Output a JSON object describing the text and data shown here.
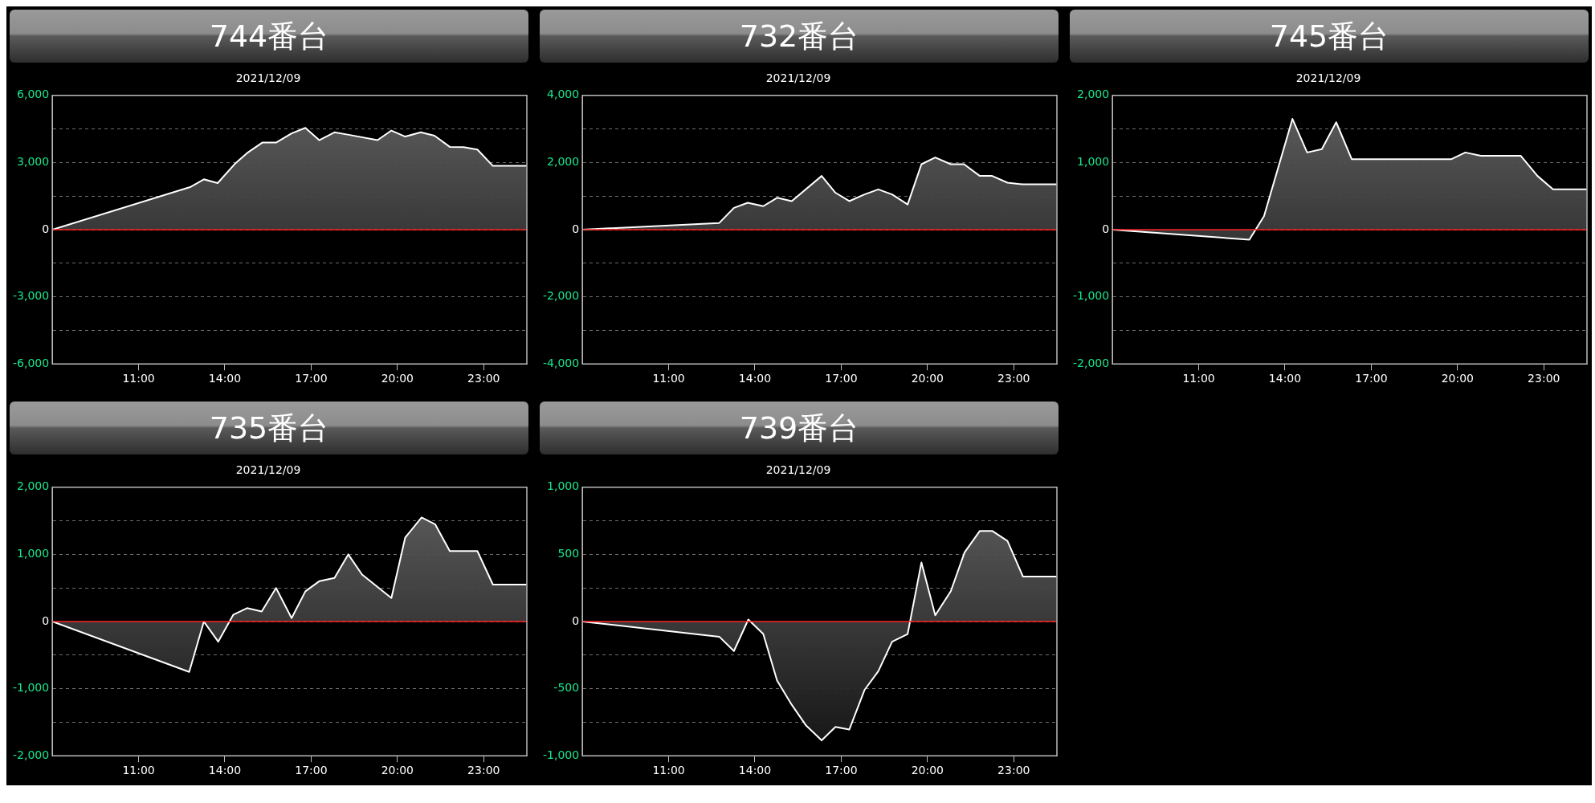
{
  "chart_data": [
    {
      "type": "area",
      "title": "744番台",
      "subtitle": "2021/12/09",
      "x": [
        8,
        12.79,
        13.27,
        13.75,
        14.34,
        14.77,
        15.3,
        15.78,
        16.32,
        16.8,
        17.28,
        17.81,
        18.35,
        19.31,
        19.79,
        20.27,
        20.81,
        21.29,
        21.82,
        22.3,
        22.78,
        23.32,
        24.49
      ],
      "series": [
        {
          "color": "#ffffff",
          "values": [
            0,
            1900,
            2250,
            2080,
            2930,
            3420,
            3890,
            3890,
            4300,
            4550,
            4000,
            4350,
            4230,
            4000,
            4430,
            4160,
            4350,
            4200,
            3700,
            3690,
            3580,
            2850,
            2850
          ]
        }
      ],
      "xlim": [
        8,
        24.5
      ],
      "xticks": [
        {
          "value": 11,
          "label": "11:00"
        },
        {
          "value": 14,
          "label": "14:00"
        },
        {
          "value": 17,
          "label": "17:00"
        },
        {
          "value": 20,
          "label": "20:00"
        },
        {
          "value": 23,
          "label": "23:00"
        }
      ],
      "ylim": [
        -6000,
        6000
      ],
      "yticks": [
        {
          "value": -6000,
          "label": "-6,000"
        },
        {
          "value": -4500,
          "label": null
        },
        {
          "value": -3000,
          "label": "-3,000"
        },
        {
          "value": -1500,
          "label": null
        },
        {
          "value": 0,
          "label": "0"
        },
        {
          "value": 1500,
          "label": null
        },
        {
          "value": 3000,
          "label": "3,000"
        },
        {
          "value": 4500,
          "label": null
        },
        {
          "value": 6000,
          "label": "6,000"
        }
      ],
      "ref_lines": [
        {
          "axis": "y",
          "value": 0,
          "color": "#ff2020"
        }
      ],
      "grid": "y",
      "legend": false
    },
    {
      "type": "area",
      "title": "732番台",
      "subtitle": "2021/12/09",
      "x": [
        8,
        12.76,
        13.27,
        13.75,
        14.29,
        14.77,
        15.28,
        16.32,
        16.8,
        17.28,
        17.81,
        18.29,
        18.77,
        19.31,
        19.79,
        20.27,
        20.81,
        21.27,
        21.82,
        22.25,
        22.78,
        23.32,
        24.49
      ],
      "series": [
        {
          "color": "#ffffff",
          "values": [
            0,
            200,
            650,
            800,
            700,
            950,
            850,
            1600,
            1100,
            850,
            1050,
            1200,
            1050,
            750,
            1950,
            2150,
            1950,
            1950,
            1600,
            1600,
            1400,
            1350,
            1350
          ]
        }
      ],
      "xlim": [
        8,
        24.5
      ],
      "xticks": [
        {
          "value": 11,
          "label": "11:00"
        },
        {
          "value": 14,
          "label": "14:00"
        },
        {
          "value": 17,
          "label": "17:00"
        },
        {
          "value": 20,
          "label": "20:00"
        },
        {
          "value": 23,
          "label": "23:00"
        }
      ],
      "ylim": [
        -4000,
        4000
      ],
      "yticks": [
        {
          "value": -4000,
          "label": "-4,000"
        },
        {
          "value": -3000,
          "label": null
        },
        {
          "value": -2000,
          "label": "-2,000"
        },
        {
          "value": -1000,
          "label": null
        },
        {
          "value": 0,
          "label": "0"
        },
        {
          "value": 1000,
          "label": null
        },
        {
          "value": 2000,
          "label": "2,000"
        },
        {
          "value": 3000,
          "label": null
        },
        {
          "value": 4000,
          "label": "4,000"
        }
      ],
      "ref_lines": [
        {
          "axis": "y",
          "value": 0,
          "color": "#ff2020"
        }
      ],
      "grid": "y",
      "legend": false
    },
    {
      "type": "area",
      "title": "745番台",
      "subtitle": "2021/12/09",
      "x": [
        8,
        12.76,
        13.27,
        14.26,
        14.77,
        15.28,
        15.78,
        16.32,
        19.79,
        20.27,
        20.81,
        22.2,
        22.78,
        23.32,
        24.49
      ],
      "series": [
        {
          "color": "#ffffff",
          "values": [
            0,
            -150,
            200,
            1650,
            1150,
            1200,
            1600,
            1050,
            1050,
            1150,
            1100,
            1100,
            800,
            600,
            600
          ]
        }
      ],
      "xlim": [
        8,
        24.5
      ],
      "xticks": [
        {
          "value": 11,
          "label": "11:00"
        },
        {
          "value": 14,
          "label": "14:00"
        },
        {
          "value": 17,
          "label": "17:00"
        },
        {
          "value": 20,
          "label": "20:00"
        },
        {
          "value": 23,
          "label": "23:00"
        }
      ],
      "ylim": [
        -2000,
        2000
      ],
      "yticks": [
        {
          "value": -2000,
          "label": "-2,000"
        },
        {
          "value": -1500,
          "label": null
        },
        {
          "value": -1000,
          "label": "-1,000"
        },
        {
          "value": -500,
          "label": null
        },
        {
          "value": 0,
          "label": "0"
        },
        {
          "value": 500,
          "label": null
        },
        {
          "value": 1000,
          "label": "1,000"
        },
        {
          "value": 1500,
          "label": null
        },
        {
          "value": 2000,
          "label": "2,000"
        }
      ],
      "ref_lines": [
        {
          "axis": "y",
          "value": 0,
          "color": "#ff2020"
        }
      ],
      "grid": "y",
      "legend": false
    },
    {
      "type": "area",
      "title": "735番台",
      "subtitle": "2021/12/09",
      "x": [
        8,
        12.76,
        13.27,
        13.77,
        14.29,
        14.77,
        15.28,
        15.78,
        16.32,
        16.8,
        17.28,
        17.81,
        18.29,
        18.77,
        19.79,
        20.27,
        20.84,
        21.31,
        21.82,
        22.78,
        23.32,
        24.49
      ],
      "series": [
        {
          "color": "#ffffff",
          "values": [
            0,
            -750,
            0,
            -300,
            100,
            200,
            150,
            500,
            50,
            450,
            600,
            650,
            1000,
            700,
            350,
            1250,
            1550,
            1450,
            1050,
            1050,
            550,
            550
          ]
        }
      ],
      "xlim": [
        8,
        24.5
      ],
      "xticks": [
        {
          "value": 11,
          "label": "11:00"
        },
        {
          "value": 14,
          "label": "14:00"
        },
        {
          "value": 17,
          "label": "17:00"
        },
        {
          "value": 20,
          "label": "20:00"
        },
        {
          "value": 23,
          "label": "23:00"
        }
      ],
      "ylim": [
        -2000,
        2000
      ],
      "yticks": [
        {
          "value": -2000,
          "label": "-2,000"
        },
        {
          "value": -1500,
          "label": null
        },
        {
          "value": -1000,
          "label": "-1,000"
        },
        {
          "value": -500,
          "label": null
        },
        {
          "value": 0,
          "label": "0"
        },
        {
          "value": 500,
          "label": null
        },
        {
          "value": 1000,
          "label": "1,000"
        },
        {
          "value": 1500,
          "label": null
        },
        {
          "value": 2000,
          "label": "2,000"
        }
      ],
      "ref_lines": [
        {
          "axis": "y",
          "value": 0,
          "color": "#ff2020"
        }
      ],
      "grid": "y",
      "legend": false
    },
    {
      "type": "area",
      "title": "739番台",
      "subtitle": "2021/12/09",
      "x": [
        8,
        12.76,
        13.27,
        13.77,
        14.29,
        14.77,
        15.28,
        15.78,
        16.32,
        16.8,
        17.28,
        17.81,
        18.29,
        18.77,
        19.31,
        19.79,
        20.27,
        20.81,
        21.29,
        21.82,
        22.25,
        22.78,
        23.32,
        24.49
      ],
      "series": [
        {
          "color": "#ffffff",
          "values": [
            0,
            -113,
            -220,
            15,
            -93,
            -440,
            -620,
            -775,
            -885,
            -785,
            -805,
            -510,
            -370,
            -150,
            -93,
            440,
            46,
            226,
            515,
            675,
            675,
            600,
            335,
            335
          ]
        }
      ],
      "xlim": [
        8,
        24.5
      ],
      "xticks": [
        {
          "value": 11,
          "label": "11:00"
        },
        {
          "value": 14,
          "label": "14:00"
        },
        {
          "value": 17,
          "label": "17:00"
        },
        {
          "value": 20,
          "label": "20:00"
        },
        {
          "value": 23,
          "label": "23:00"
        }
      ],
      "ylim": [
        -1000,
        1000
      ],
      "yticks": [
        {
          "value": -1000,
          "label": "-1,000"
        },
        {
          "value": -750,
          "label": null
        },
        {
          "value": -500,
          "label": "-500"
        },
        {
          "value": -250,
          "label": null
        },
        {
          "value": 0,
          "label": "0"
        },
        {
          "value": 250,
          "label": null
        },
        {
          "value": 500,
          "label": "500"
        },
        {
          "value": 750,
          "label": null
        },
        {
          "value": 1000,
          "label": "1,000"
        }
      ],
      "ref_lines": [
        {
          "axis": "y",
          "value": 0,
          "color": "#ff2020"
        }
      ],
      "grid": "y",
      "legend": false
    }
  ]
}
